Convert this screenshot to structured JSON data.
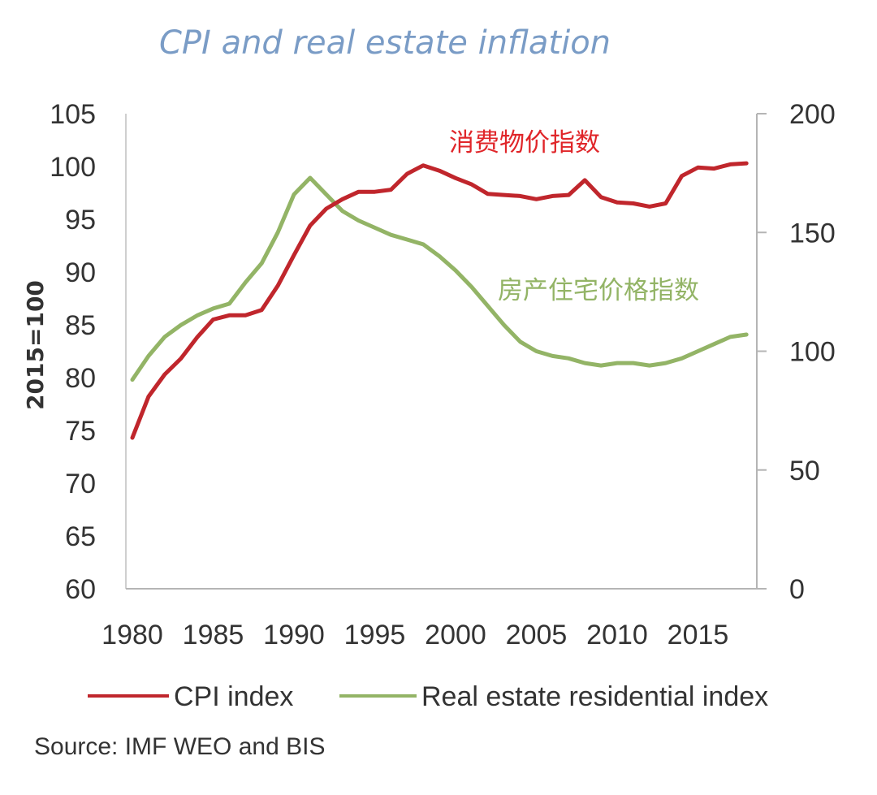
{
  "chart_data": {
    "type": "line",
    "title": "CPI and real estate inflation",
    "ylabel": "2015=100",
    "ylim": [
      60,
      105
    ],
    "y2lim": [
      0,
      200
    ],
    "yticks": [
      "60",
      "65",
      "70",
      "75",
      "80",
      "85",
      "90",
      "95",
      "100",
      "105"
    ],
    "y2ticks": [
      "0",
      "50",
      "100",
      "150",
      "200"
    ],
    "xticks": [
      "1980",
      "1985",
      "1990",
      "1995",
      "2000",
      "2005",
      "2010",
      "2015"
    ],
    "x": [
      1980,
      1981,
      1982,
      1983,
      1984,
      1985,
      1986,
      1987,
      1988,
      1989,
      1990,
      1991,
      1992,
      1993,
      1994,
      1995,
      1996,
      1997,
      1998,
      1999,
      2000,
      2001,
      2002,
      2003,
      2004,
      2005,
      2006,
      2007,
      2008,
      2009,
      2010,
      2011,
      2012,
      2013,
      2014,
      2015,
      2016,
      2017,
      2018
    ],
    "series": [
      {
        "name": "CPI index",
        "axis": "left",
        "color": "#c0262c",
        "annotation": "消费物价指数",
        "values": [
          74.3,
          78.2,
          80.3,
          81.8,
          83.8,
          85.5,
          85.9,
          85.9,
          86.4,
          88.7,
          91.6,
          94.4,
          96.0,
          96.9,
          97.6,
          97.6,
          97.8,
          99.3,
          100.1,
          99.6,
          98.9,
          98.3,
          97.4,
          97.3,
          97.2,
          96.9,
          97.2,
          97.3,
          98.7,
          97.1,
          96.6,
          96.5,
          96.2,
          96.5,
          99.1,
          99.9,
          99.8,
          100.2,
          100.3
        ]
      },
      {
        "name": "Real estate residential index",
        "axis": "right",
        "color": "#93b466",
        "annotation": "房产住宅价格指数",
        "values": [
          88,
          98,
          106,
          111,
          115,
          118,
          120,
          129,
          137,
          150,
          166,
          173,
          166,
          159,
          155,
          152,
          149,
          147,
          145,
          140,
          134,
          127,
          119,
          111,
          104,
          100,
          98,
          97,
          95,
          94,
          95,
          95,
          94,
          95,
          97,
          100,
          103,
          106,
          107
        ]
      }
    ],
    "source": "Source: IMF WEO and BIS"
  }
}
